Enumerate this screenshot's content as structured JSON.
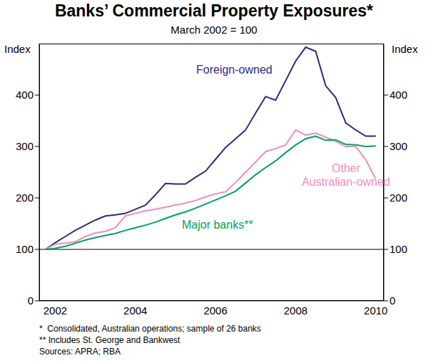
{
  "chart_data": {
    "type": "line",
    "title": "Banks’ Commercial Property Exposures*",
    "subtitle": "March 2002 = 100",
    "y_label": "Index",
    "y2_label": "Index",
    "x": [
      2002.25,
      2002.5,
      2002.75,
      2003.0,
      2003.25,
      2003.5,
      2003.75,
      2004.0,
      2004.25,
      2004.5,
      2004.75,
      2005.0,
      2005.25,
      2005.5,
      2005.75,
      2006.0,
      2006.25,
      2006.5,
      2006.75,
      2007.0,
      2007.25,
      2007.5,
      2007.75,
      2008.0,
      2008.25,
      2008.5,
      2008.75,
      2009.0,
      2009.25,
      2009.5,
      2009.75,
      2010.0,
      2010.25,
      2010.5
    ],
    "xlim": [
      2002.1,
      2010.7
    ],
    "xticks": [
      {
        "value": 2002.5,
        "label": "2002"
      },
      {
        "value": 2004.5,
        "label": "2004"
      },
      {
        "value": 2006.5,
        "label": "2006"
      },
      {
        "value": 2008.5,
        "label": "2008"
      },
      {
        "value": 2010.5,
        "label": "2010"
      }
    ],
    "ylim": [
      0,
      500
    ],
    "yticks": [
      0,
      100,
      200,
      300,
      400
    ],
    "y2lim": [
      0,
      500
    ],
    "y2ticks": [
      0,
      100,
      200,
      300,
      400
    ],
    "reference_line": 100,
    "grid": false,
    "series": [
      {
        "name": "Foreign-owned",
        "color": "#2b2b7a",
        "values": [
          100,
          113,
          125,
          137,
          147,
          157,
          165,
          167,
          170,
          178,
          186,
          206,
          228,
          227,
          227,
          240,
          252,
          275,
          298,
          315,
          332,
          365,
          397,
          390,
          428,
          466,
          493,
          485,
          418,
          395,
          346,
          332,
          320,
          320
        ]
      },
      {
        "name": "Other Australian-owned",
        "color": "#f08cc0",
        "values": [
          100,
          110,
          112,
          115,
          125,
          132,
          135,
          142,
          165,
          170,
          175,
          178,
          182,
          186,
          190,
          195,
          202,
          208,
          212,
          230,
          250,
          270,
          290,
          296,
          303,
          332,
          322,
          326,
          318,
          310,
          300,
          300,
          274,
          237
        ]
      },
      {
        "name": "Major banks**",
        "color": "#00a060",
        "values": [
          100,
          102,
          106,
          112,
          118,
          123,
          127,
          131,
          137,
          142,
          147,
          153,
          160,
          167,
          173,
          180,
          188,
          196,
          204,
          213,
          229,
          245,
          259,
          272,
          288,
          303,
          315,
          320,
          312,
          313,
          304,
          303,
          300,
          301
        ]
      }
    ],
    "notes": [
      "*  Consolidated, Australian operations; sample of 26 banks",
      "** Includes St. George and Bankwest",
      "Sources: APRA; RBA"
    ]
  }
}
